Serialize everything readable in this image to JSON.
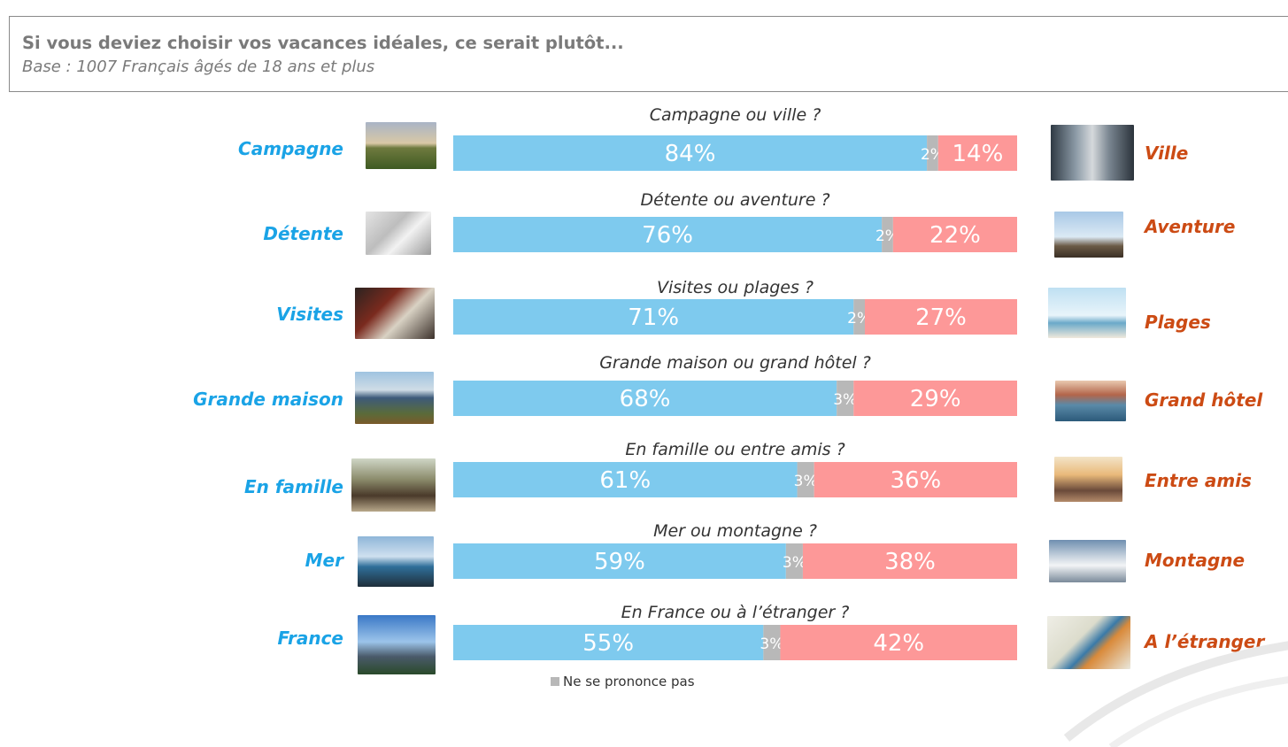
{
  "header": {
    "title": "Si vous deviez choisir vos vacances idéales, ce serait plutôt...",
    "subtitle": "Base : 1007 Français âgés de 18 ans et plus"
  },
  "legend": {
    "label": "Ne se prononce pas"
  },
  "colors": {
    "left": "#7ecaee",
    "neutral": "#b8b8b8",
    "right": "#fd9898",
    "left_label": "#1aa3e6",
    "right_label": "#cc4b14"
  },
  "rows": [
    {
      "question": "Campagne ou ville ?",
      "left_label": "Campagne",
      "right_label": "Ville",
      "left_icon": "countryside-photo",
      "right_icon": "city-street-photo"
    },
    {
      "question": "Détente ou aventure ?",
      "left_label": "Détente",
      "right_label": "Aventure",
      "left_icon": "hammock-photo",
      "right_icon": "hiker-cliff-photo"
    },
    {
      "question": "Visites ou plages ?",
      "left_label": "Visites",
      "right_label": "Plages",
      "left_icon": "map-visit-photo",
      "right_icon": "palm-beach-photo"
    },
    {
      "question": "Grande maison ou grand hôtel ?",
      "left_label": "Grande maison",
      "right_label": "Grand hôtel",
      "left_icon": "house-photo",
      "right_icon": "hotel-pool-photo"
    },
    {
      "question": "En famille ou entre amis ?",
      "left_label": "En famille",
      "right_label": "Entre amis",
      "left_icon": "family-photo",
      "right_icon": "friends-sunset-photo"
    },
    {
      "question": "Mer ou montagne ?",
      "left_label": "Mer",
      "right_label": "Montagne",
      "left_icon": "sea-rocks-photo",
      "right_icon": "mountain-peaks-photo"
    },
    {
      "question": "En France ou à l’étranger ?",
      "left_label": "France",
      "right_label": "A l’étranger",
      "left_icon": "eiffel-tower-photo",
      "right_icon": "kingfisher-bird-photo"
    }
  ],
  "chart_data": {
    "type": "bar",
    "stacked": true,
    "orientation": "horizontal",
    "categories": [
      "Campagne ou ville ?",
      "Détente ou aventure ?",
      "Visites ou plages ?",
      "Grande maison ou grand hôtel ?",
      "En famille ou entre amis ?",
      "Mer ou montagne ?",
      "En France ou à l’étranger ?"
    ],
    "series": [
      {
        "name": "",
        "values": [
          84,
          76,
          71,
          68,
          61,
          59,
          55
        ],
        "labels": [
          "84%",
          "76%",
          "71%",
          "68%",
          "61%",
          "59%",
          "55%"
        ]
      },
      {
        "name": "Ne se prononce pas",
        "values": [
          2,
          2,
          2,
          3,
          3,
          3,
          3
        ],
        "labels": [
          "2%",
          "2%",
          "2%",
          "3%",
          "3%",
          "3%",
          "3%"
        ]
      },
      {
        "name": "",
        "values": [
          14,
          22,
          27,
          29,
          36,
          38,
          42
        ],
        "labels": [
          "14%",
          "22%",
          "27%",
          "29%",
          "36%",
          "38%",
          "42%"
        ]
      }
    ],
    "xlim": [
      0,
      100
    ],
    "grid": false,
    "legend_position": "bottom"
  }
}
